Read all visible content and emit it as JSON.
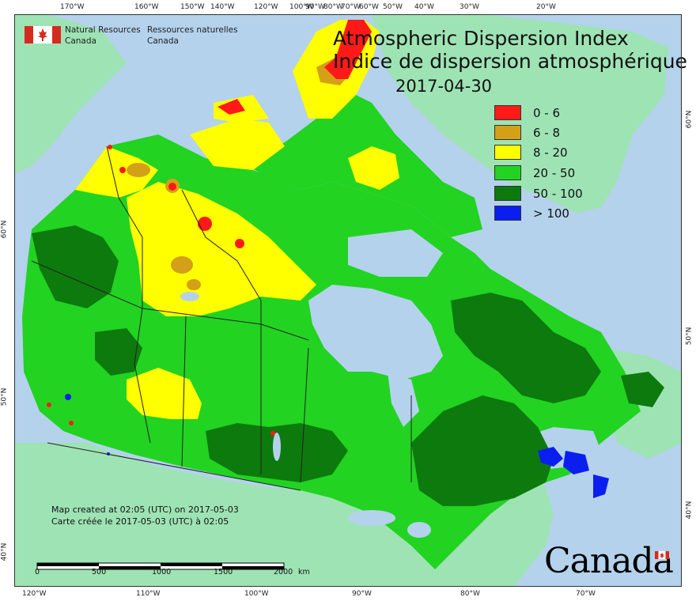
{
  "map": {
    "title_en": "Atmospheric Dispersion Index",
    "title_fr": "Indice de dispersion atmosphérique",
    "date": "2017-04-30",
    "legend": [
      {
        "label": "0 - 6",
        "color": "#ff1a1a"
      },
      {
        "label": "6 - 8",
        "color": "#d4a017"
      },
      {
        "label": "8 - 20",
        "color": "#ffff00"
      },
      {
        "label": "20 - 50",
        "color": "#22d322"
      },
      {
        "label": "50 - 100",
        "color": "#0d7a0d"
      },
      {
        "label": "> 100",
        "color": "#0a1ef0"
      }
    ],
    "colors": {
      "ocean": "#b4d2ec",
      "neighbour_land": "#9ee3b4",
      "border": "#222222"
    }
  },
  "agency": {
    "name_en_line1": "Natural Resources",
    "name_en_line2": "Canada",
    "name_fr_line1": "Ressources naturelles",
    "name_fr_line2": "Canada"
  },
  "credit": {
    "line_en": "Map created at 02:05 (UTC) on 2017-05-03",
    "line_fr": "Carte créée le 2017-05-03 (UTC) à 02:05"
  },
  "scalebar": {
    "labels": [
      "0",
      "500",
      "1000",
      "1500",
      "2000"
    ],
    "unit": "km"
  },
  "wordmark": "Canada",
  "graticule": {
    "top": [
      "170°W",
      "160°W",
      "150°W",
      "140°W",
      "120°W",
      "100°W",
      "90°W",
      "80°W",
      "70°W",
      "60°W",
      "50°W",
      "40°W",
      "30°W",
      "20°W"
    ],
    "bottom": [
      "120°W",
      "110°W",
      "100°W",
      "90°W",
      "80°W",
      "70°W"
    ],
    "left": [
      "60°N",
      "50°N",
      "40°N"
    ],
    "right": [
      "60°N",
      "50°N",
      "40°N"
    ]
  }
}
